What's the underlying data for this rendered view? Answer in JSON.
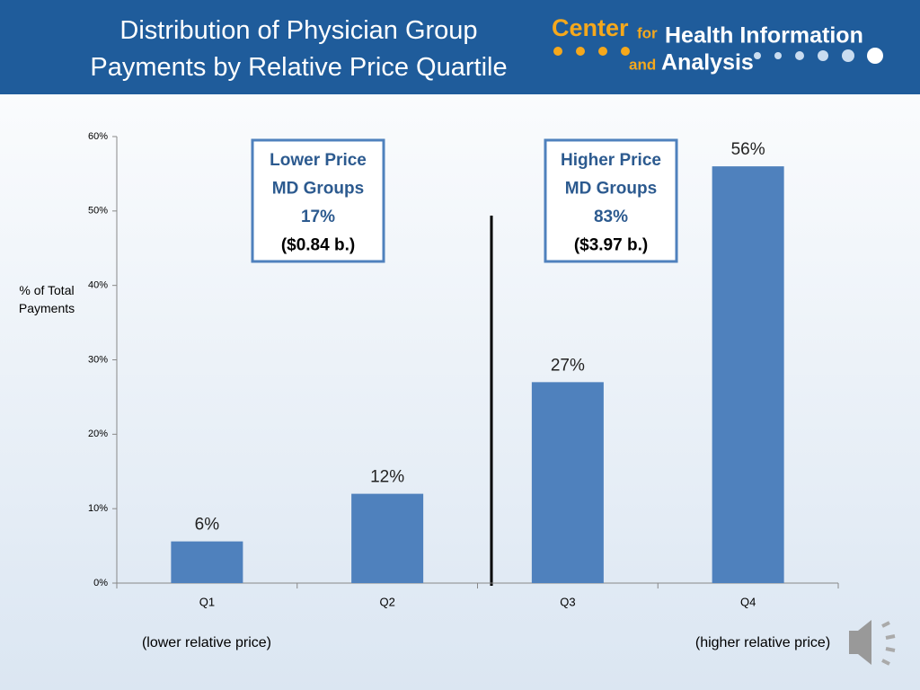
{
  "logo": {
    "center": "Center",
    "for": "for",
    "health": "Health Information",
    "and": "and",
    "analysis": "Analysis"
  },
  "chart_data": {
    "type": "bar",
    "title": [
      "Distribution of Physician Group",
      "Payments by Relative Price Quartile"
    ],
    "y_label": "% of Total Payments",
    "categories": [
      "Q1",
      "Q2",
      "Q3",
      "Q4"
    ],
    "values": [
      5.6,
      12,
      27,
      56
    ],
    "value_labels": [
      "6%",
      "12%",
      "27%",
      "56%"
    ],
    "color": "#4f81bd",
    "ylim": [
      0,
      60
    ],
    "yticks": [
      {
        "value": 0,
        "label": "0%"
      },
      {
        "value": 10,
        "label": "10%"
      },
      {
        "value": 20,
        "label": "20%"
      },
      {
        "value": 30,
        "label": "30%"
      },
      {
        "value": 40,
        "label": "40%"
      },
      {
        "value": 50,
        "label": "50%"
      },
      {
        "value": 60,
        "label": "60%"
      }
    ],
    "grid": false,
    "annotations": [
      {
        "lines": [
          "Lower Price",
          "MD Groups",
          "17%",
          "($0.84 b.)"
        ]
      },
      {
        "lines": [
          "Higher Price",
          "MD Groups",
          "83%",
          "($3.97 b.)"
        ]
      }
    ],
    "x_notes": [
      "(lower relative price)",
      "(higher relative price)"
    ]
  }
}
